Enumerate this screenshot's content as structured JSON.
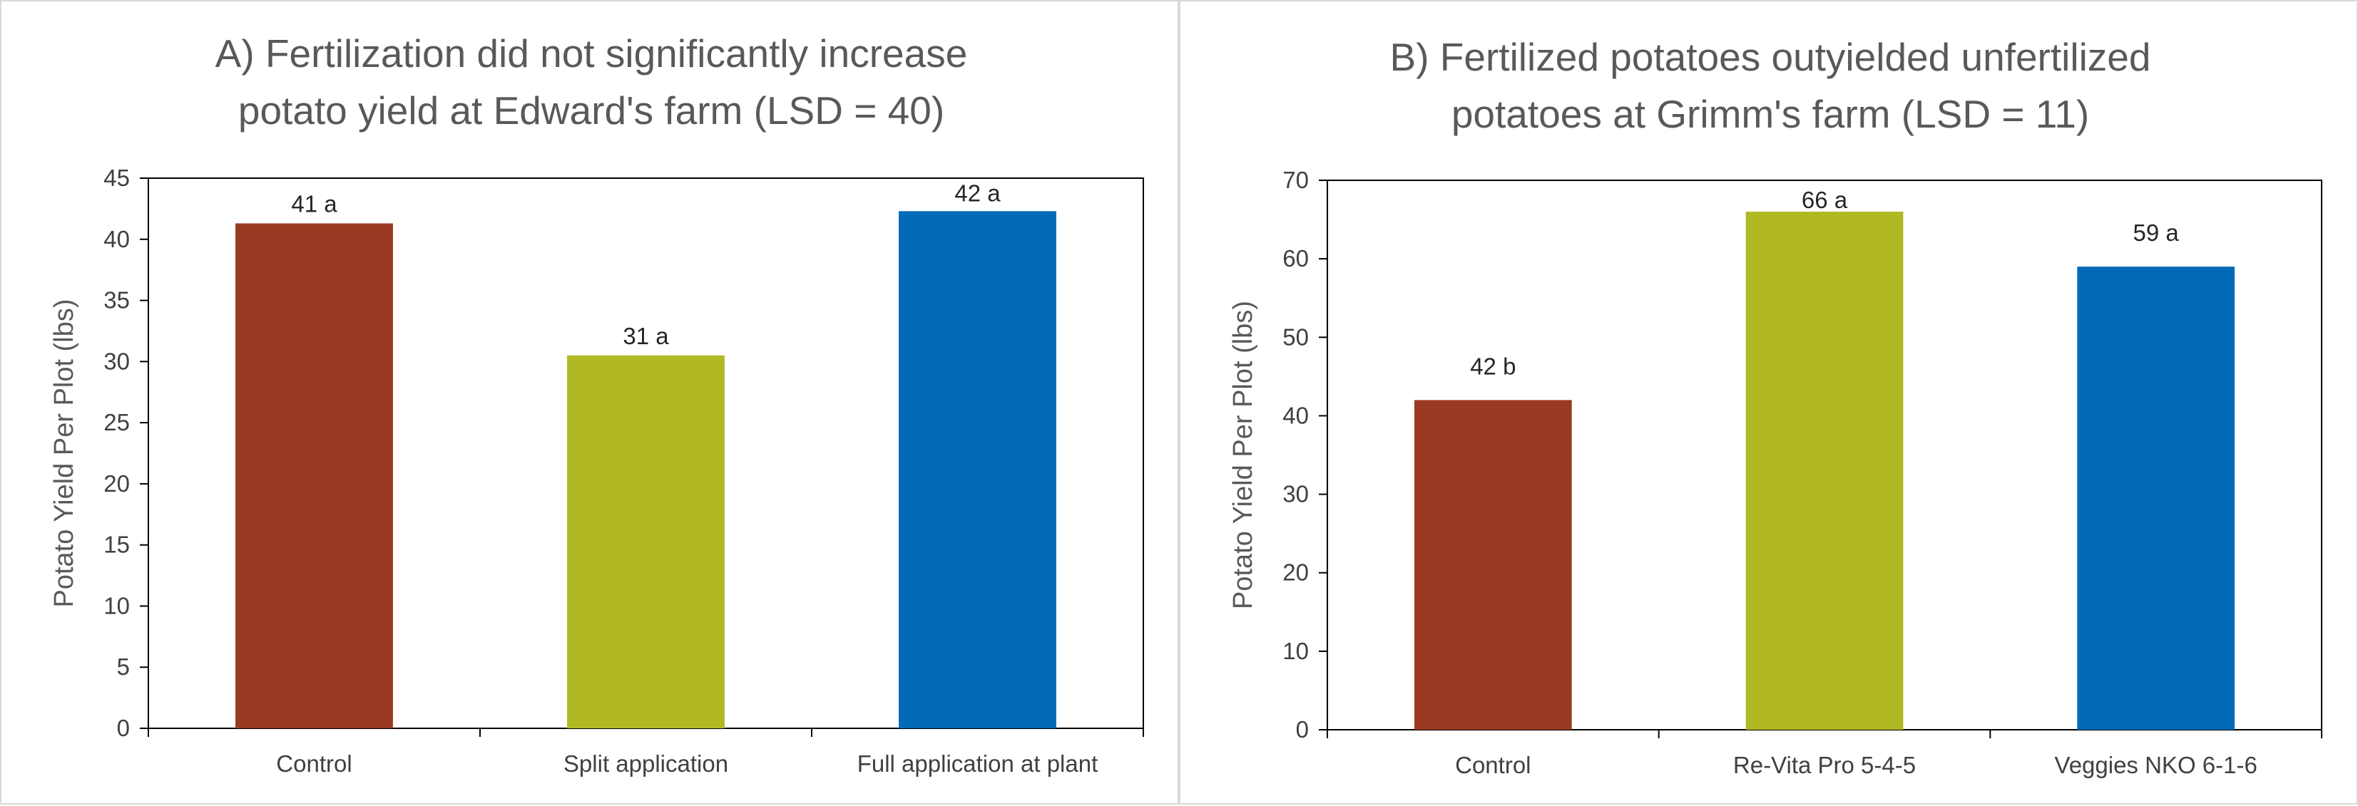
{
  "chart_data": [
    {
      "type": "bar",
      "title_lines": [
        "A) Fertilization did not significantly increase",
        "potato yield at Edward's farm (LSD = 40)"
      ],
      "xlabel": "",
      "ylabel": "Potato Yield Per Plot (lbs)",
      "categories": [
        "Control",
        "Split application",
        "Full application at plant"
      ],
      "values": [
        41.3,
        30.5,
        42.3
      ],
      "data_labels": [
        "41 a",
        "31 a",
        "42 a"
      ],
      "colors": [
        "#9B3A22",
        "#B0B823",
        "#036AB7"
      ],
      "ylim": [
        0,
        45
      ],
      "yticks": [
        "0",
        "5",
        "10",
        "15",
        "20",
        "25",
        "30",
        "35",
        "40",
        "45"
      ],
      "grid": false,
      "legend": "none"
    },
    {
      "type": "bar",
      "title_lines": [
        "B) Fertilized potatoes outyielded unfertilized",
        "potatoes at Grimm's farm (LSD = 11)"
      ],
      "xlabel": "",
      "ylabel": "Potato Yield Per Plot (lbs)",
      "categories": [
        "Control",
        "Re-Vita Pro 5-4-5",
        "Veggies NKO 6-1-6"
      ],
      "values": [
        42,
        66,
        59
      ],
      "data_labels": [
        "42 b",
        "66 a",
        "59 a"
      ],
      "colors": [
        "#9B3A22",
        "#B0B823",
        "#036AB7"
      ],
      "ylim": [
        0,
        70
      ],
      "yticks": [
        "0",
        "10",
        "20",
        "30",
        "40",
        "50",
        "60",
        "70"
      ],
      "grid": false,
      "legend": "none"
    }
  ]
}
